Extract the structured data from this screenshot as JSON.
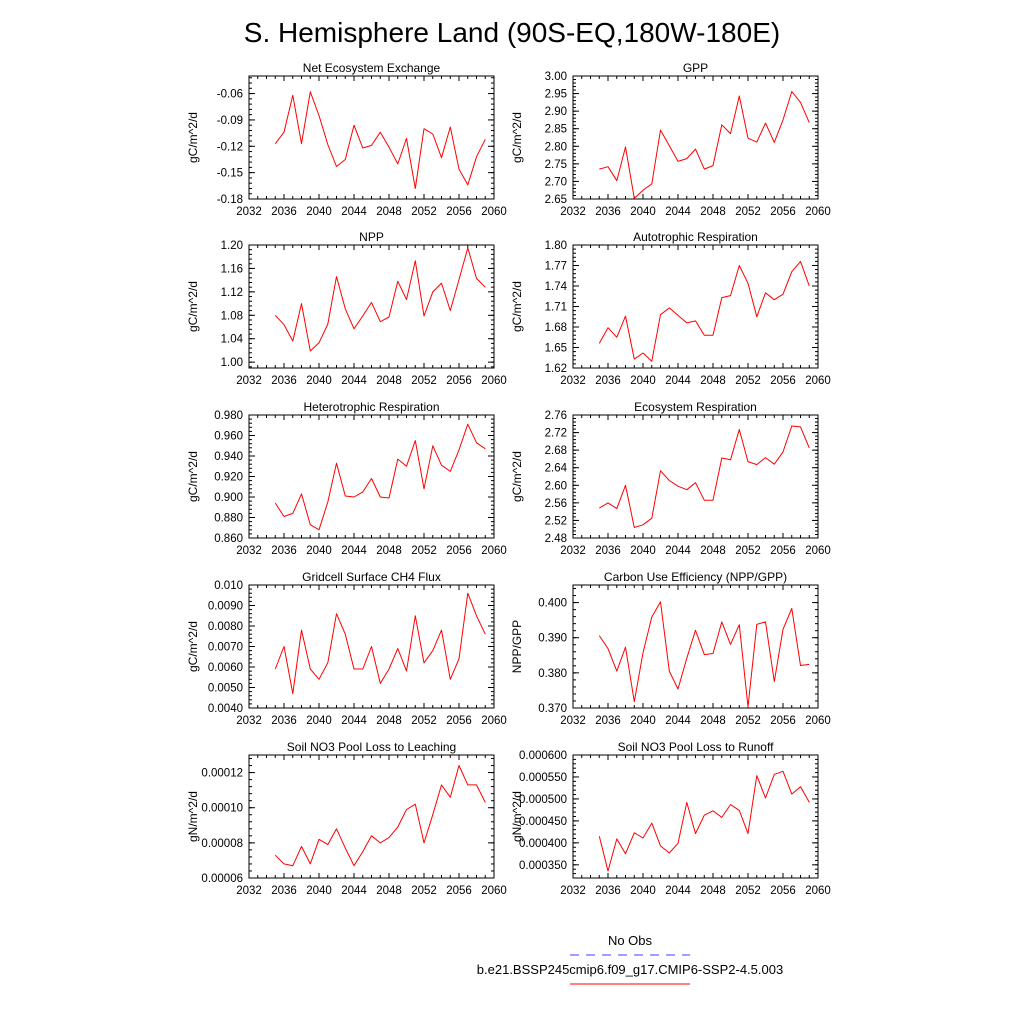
{
  "figure": {
    "title": "S. Hemisphere Land (90S-EQ,180W-180E)",
    "legend": [
      {
        "label": "No Obs",
        "color": "#4040ff",
        "style": "dashed"
      },
      {
        "label": "b.e21.BSSP245cmip6.f09_g17.CMIP6-SSP2-4.5.003",
        "color": "#ff0000",
        "style": "solid"
      }
    ]
  },
  "chart_data": [
    {
      "type": "line",
      "title": "Net Ecosystem Exchange",
      "ylabel": "gC/m^2/d",
      "xlim": [
        2032,
        2060
      ],
      "ylim": [
        -0.18,
        -0.04
      ],
      "xticks": [
        "2032",
        "2036",
        "2040",
        "2044",
        "2048",
        "2052",
        "2056",
        "2060"
      ],
      "yticks": [
        "-0.18",
        "-0.15",
        "-0.12",
        "-0.09",
        "-0.06"
      ],
      "ytick_values": [
        -0.18,
        -0.15,
        -0.12,
        -0.09,
        -0.06
      ],
      "series": [
        {
          "name": "b.e21.BSSP245cmip6.f09_g17.CMIP6-SSP2-4.5.003",
          "color": "#ff0000",
          "x": [
            2035,
            2036,
            2037,
            2038,
            2039,
            2040,
            2041,
            2042,
            2043,
            2044,
            2045,
            2046,
            2047,
            2048,
            2049,
            2050,
            2051,
            2052,
            2053,
            2054,
            2055,
            2056,
            2057,
            2058,
            2059
          ],
          "y": [
            -0.117,
            -0.104,
            -0.062,
            -0.117,
            -0.058,
            -0.085,
            -0.118,
            -0.143,
            -0.135,
            -0.096,
            -0.122,
            -0.119,
            -0.104,
            -0.121,
            -0.14,
            -0.111,
            -0.168,
            -0.1,
            -0.106,
            -0.133,
            -0.098,
            -0.146,
            -0.164,
            -0.132,
            -0.112
          ]
        }
      ]
    },
    {
      "type": "line",
      "title": "GPP",
      "ylabel": "gC/m^2/d",
      "xlim": [
        2032,
        2060
      ],
      "ylim": [
        2.65,
        3.0
      ],
      "xticks": [
        "2032",
        "2036",
        "2040",
        "2044",
        "2048",
        "2052",
        "2056",
        "2060"
      ],
      "yticks": [
        "2.65",
        "2.70",
        "2.75",
        "2.80",
        "2.85",
        "2.90",
        "2.95",
        "3.00"
      ],
      "ytick_values": [
        2.65,
        2.7,
        2.75,
        2.8,
        2.85,
        2.9,
        2.95,
        3.0
      ],
      "series": [
        {
          "name": "b.e21.BSSP245cmip6.f09_g17.CMIP6-SSP2-4.5.003",
          "color": "#ff0000",
          "x": [
            2035,
            2036,
            2037,
            2038,
            2039,
            2040,
            2041,
            2042,
            2043,
            2044,
            2045,
            2046,
            2047,
            2048,
            2049,
            2050,
            2051,
            2052,
            2053,
            2054,
            2055,
            2056,
            2057,
            2058,
            2059
          ],
          "y": [
            2.735,
            2.742,
            2.702,
            2.798,
            2.652,
            2.675,
            2.693,
            2.846,
            2.802,
            2.757,
            2.765,
            2.792,
            2.735,
            2.745,
            2.861,
            2.836,
            2.943,
            2.823,
            2.812,
            2.866,
            2.811,
            2.875,
            2.956,
            2.925,
            2.867
          ]
        }
      ]
    },
    {
      "type": "line",
      "title": "NPP",
      "ylabel": "gC/m^2/d",
      "xlim": [
        2032,
        2060
      ],
      "ylim": [
        0.99,
        1.2
      ],
      "xticks": [
        "2032",
        "2036",
        "2040",
        "2044",
        "2048",
        "2052",
        "2056",
        "2060"
      ],
      "yticks": [
        "1.00",
        "1.04",
        "1.08",
        "1.12",
        "1.16",
        "1.20"
      ],
      "ytick_values": [
        1.0,
        1.04,
        1.08,
        1.12,
        1.16,
        1.2
      ],
      "series": [
        {
          "name": "b.e21.BSSP245cmip6.f09_g17.CMIP6-SSP2-4.5.003",
          "color": "#ff0000",
          "x": [
            2035,
            2036,
            2037,
            2038,
            2039,
            2040,
            2041,
            2042,
            2043,
            2044,
            2045,
            2046,
            2047,
            2048,
            2049,
            2050,
            2051,
            2052,
            2053,
            2054,
            2055,
            2056,
            2057,
            2058,
            2059
          ],
          "y": [
            1.08,
            1.064,
            1.036,
            1.1,
            1.019,
            1.033,
            1.065,
            1.146,
            1.091,
            1.057,
            1.079,
            1.102,
            1.069,
            1.077,
            1.138,
            1.107,
            1.173,
            1.079,
            1.12,
            1.135,
            1.088,
            1.141,
            1.195,
            1.143,
            1.128
          ]
        }
      ]
    },
    {
      "type": "line",
      "title": "Autotrophic Respiration",
      "ylabel": "gC/m^2/d",
      "xlim": [
        2032,
        2060
      ],
      "ylim": [
        1.62,
        1.8
      ],
      "xticks": [
        "2032",
        "2036",
        "2040",
        "2044",
        "2048",
        "2052",
        "2056",
        "2060"
      ],
      "yticks": [
        "1.62",
        "1.65",
        "1.68",
        "1.71",
        "1.74",
        "1.77",
        "1.80"
      ],
      "ytick_values": [
        1.62,
        1.65,
        1.68,
        1.71,
        1.74,
        1.77,
        1.8
      ],
      "series": [
        {
          "name": "b.e21.BSSP245cmip6.f09_g17.CMIP6-SSP2-4.5.003",
          "color": "#ff0000",
          "x": [
            2035,
            2036,
            2037,
            2038,
            2039,
            2040,
            2041,
            2042,
            2043,
            2044,
            2045,
            2046,
            2047,
            2048,
            2049,
            2050,
            2051,
            2052,
            2053,
            2054,
            2055,
            2056,
            2057,
            2058,
            2059
          ],
          "y": [
            1.656,
            1.679,
            1.665,
            1.696,
            1.633,
            1.642,
            1.63,
            1.698,
            1.708,
            1.697,
            1.686,
            1.689,
            1.668,
            1.668,
            1.723,
            1.726,
            1.77,
            1.744,
            1.695,
            1.73,
            1.72,
            1.728,
            1.761,
            1.776,
            1.74
          ]
        }
      ]
    },
    {
      "type": "line",
      "title": "Heterotrophic Respiration",
      "ylabel": "gC/m^2/d",
      "xlim": [
        2032,
        2060
      ],
      "ylim": [
        0.86,
        0.98
      ],
      "xticks": [
        "2032",
        "2036",
        "2040",
        "2044",
        "2048",
        "2052",
        "2056",
        "2060"
      ],
      "yticks": [
        "0.860",
        "0.880",
        "0.900",
        "0.920",
        "0.940",
        "0.960",
        "0.980"
      ],
      "ytick_values": [
        0.86,
        0.88,
        0.9,
        0.92,
        0.94,
        0.96,
        0.98
      ],
      "series": [
        {
          "name": "b.e21.BSSP245cmip6.f09_g17.CMIP6-SSP2-4.5.003",
          "color": "#ff0000",
          "x": [
            2035,
            2036,
            2037,
            2038,
            2039,
            2040,
            2041,
            2042,
            2043,
            2044,
            2045,
            2046,
            2047,
            2048,
            2049,
            2050,
            2051,
            2052,
            2053,
            2054,
            2055,
            2056,
            2057,
            2058,
            2059
          ],
          "y": [
            0.894,
            0.881,
            0.884,
            0.903,
            0.873,
            0.868,
            0.895,
            0.933,
            0.901,
            0.9,
            0.905,
            0.918,
            0.9,
            0.899,
            0.937,
            0.93,
            0.955,
            0.908,
            0.95,
            0.931,
            0.925,
            0.946,
            0.971,
            0.953,
            0.947
          ]
        }
      ]
    },
    {
      "type": "line",
      "title": "Ecosystem Respiration",
      "ylabel": "gC/m^2/d",
      "xlim": [
        2032,
        2060
      ],
      "ylim": [
        2.48,
        2.76
      ],
      "xticks": [
        "2032",
        "2036",
        "2040",
        "2044",
        "2048",
        "2052",
        "2056",
        "2060"
      ],
      "yticks": [
        "2.48",
        "2.52",
        "2.56",
        "2.60",
        "2.64",
        "2.68",
        "2.72",
        "2.76"
      ],
      "ytick_values": [
        2.48,
        2.52,
        2.56,
        2.6,
        2.64,
        2.68,
        2.72,
        2.76
      ],
      "series": [
        {
          "name": "b.e21.BSSP245cmip6.f09_g17.CMIP6-SSP2-4.5.003",
          "color": "#ff0000",
          "x": [
            2035,
            2036,
            2037,
            2038,
            2039,
            2040,
            2041,
            2042,
            2043,
            2044,
            2045,
            2046,
            2047,
            2048,
            2049,
            2050,
            2051,
            2052,
            2053,
            2054,
            2055,
            2056,
            2057,
            2058,
            2059
          ],
          "y": [
            2.548,
            2.56,
            2.547,
            2.6,
            2.504,
            2.51,
            2.525,
            2.633,
            2.611,
            2.598,
            2.59,
            2.606,
            2.566,
            2.566,
            2.662,
            2.658,
            2.727,
            2.654,
            2.647,
            2.663,
            2.648,
            2.676,
            2.735,
            2.733,
            2.685
          ]
        }
      ]
    },
    {
      "type": "line",
      "title": "Gridcell Surface CH4 Flux",
      "ylabel": "gC/m^2/d",
      "xlim": [
        2032,
        2060
      ],
      "ylim": [
        0.004,
        0.01
      ],
      "xticks": [
        "2032",
        "2036",
        "2040",
        "2044",
        "2048",
        "2052",
        "2056",
        "2060"
      ],
      "yticks": [
        "0.0040",
        "0.0050",
        "0.0060",
        "0.0070",
        "0.0080",
        "0.0090",
        "0.010"
      ],
      "ytick_values": [
        0.004,
        0.005,
        0.006,
        0.007,
        0.008,
        0.009,
        0.01
      ],
      "series": [
        {
          "name": "b.e21.BSSP245cmip6.f09_g17.CMIP6-SSP2-4.5.003",
          "color": "#ff0000",
          "x": [
            2035,
            2036,
            2037,
            2038,
            2039,
            2040,
            2041,
            2042,
            2043,
            2044,
            2045,
            2046,
            2047,
            2048,
            2049,
            2050,
            2051,
            2052,
            2053,
            2054,
            2055,
            2056,
            2057,
            2058,
            2059
          ],
          "y": [
            0.0059,
            0.007,
            0.0047,
            0.0078,
            0.0059,
            0.0054,
            0.0062,
            0.0086,
            0.0076,
            0.0059,
            0.0059,
            0.007,
            0.0052,
            0.0059,
            0.0069,
            0.0058,
            0.0085,
            0.0062,
            0.0068,
            0.0078,
            0.0054,
            0.0064,
            0.0096,
            0.0085,
            0.0076
          ]
        }
      ]
    },
    {
      "type": "line",
      "title": "Carbon Use Efficiency (NPP/GPP)",
      "ylabel": "NPP/GPP",
      "xlim": [
        2032,
        2060
      ],
      "ylim": [
        0.37,
        0.405
      ],
      "xticks": [
        "2032",
        "2036",
        "2040",
        "2044",
        "2048",
        "2052",
        "2056",
        "2060"
      ],
      "yticks": [
        "0.370",
        "0.380",
        "0.390",
        "0.400"
      ],
      "ytick_values": [
        0.37,
        0.38,
        0.39,
        0.4
      ],
      "series": [
        {
          "name": "b.e21.BSSP245cmip6.f09_g17.CMIP6-SSP2-4.5.003",
          "color": "#ff0000",
          "x": [
            2035,
            2036,
            2037,
            2038,
            2039,
            2040,
            2041,
            2042,
            2043,
            2044,
            2045,
            2046,
            2047,
            2048,
            2049,
            2050,
            2051,
            2052,
            2053,
            2054,
            2055,
            2056,
            2057,
            2058,
            2059
          ],
          "y": [
            0.3906,
            0.3869,
            0.3805,
            0.3873,
            0.3718,
            0.3857,
            0.3959,
            0.4002,
            0.3805,
            0.3754,
            0.3842,
            0.3921,
            0.3852,
            0.3855,
            0.3945,
            0.3881,
            0.3937,
            0.3703,
            0.3938,
            0.3945,
            0.3775,
            0.3924,
            0.3983,
            0.3821,
            0.3824
          ]
        }
      ]
    },
    {
      "type": "line",
      "title": "Soil NO3 Pool Loss to Leaching",
      "ylabel": "gN/m^2/d",
      "xlim": [
        2032,
        2060
      ],
      "ylim": [
        6e-05,
        0.00013
      ],
      "xticks": [
        "2032",
        "2036",
        "2040",
        "2044",
        "2048",
        "2052",
        "2056",
        "2060"
      ],
      "yticks": [
        "0.00006",
        "0.00008",
        "0.00010",
        "0.00012"
      ],
      "ytick_values": [
        6e-05,
        8e-05,
        0.0001,
        0.00012
      ],
      "series": [
        {
          "name": "b.e21.BSSP245cmip6.f09_g17.CMIP6-SSP2-4.5.003",
          "color": "#ff0000",
          "x": [
            2035,
            2036,
            2037,
            2038,
            2039,
            2040,
            2041,
            2042,
            2043,
            2044,
            2045,
            2046,
            2047,
            2048,
            2049,
            2050,
            2051,
            2052,
            2053,
            2054,
            2055,
            2056,
            2057,
            2058,
            2059
          ],
          "y": [
            7.3e-05,
            6.8e-05,
            6.7e-05,
            7.8e-05,
            6.8e-05,
            8.2e-05,
            7.9e-05,
            8.8e-05,
            7.7e-05,
            6.7e-05,
            7.5e-05,
            8.4e-05,
            8e-05,
            8.3e-05,
            8.9e-05,
            9.9e-05,
            0.000102,
            8e-05,
            9.6e-05,
            0.000113,
            0.000106,
            0.000124,
            0.000113,
            0.000113,
            0.000103
          ]
        }
      ]
    },
    {
      "type": "line",
      "title": "Soil NO3 Pool Loss to Runoff",
      "ylabel": "gN/m^2/d",
      "xlim": [
        2032,
        2060
      ],
      "ylim": [
        0.00032,
        0.0006
      ],
      "xticks": [
        "2032",
        "2036",
        "2040",
        "2044",
        "2048",
        "2052",
        "2056",
        "2060"
      ],
      "yticks": [
        "0.000350",
        "0.000400",
        "0.000450",
        "0.000500",
        "0.000550",
        "0.000600"
      ],
      "ytick_values": [
        0.00035,
        0.0004,
        0.00045,
        0.0005,
        0.00055,
        0.0006
      ],
      "series": [
        {
          "name": "b.e21.BSSP245cmip6.f09_g17.CMIP6-SSP2-4.5.003",
          "color": "#ff0000",
          "x": [
            2035,
            2036,
            2037,
            2038,
            2039,
            2040,
            2041,
            2042,
            2043,
            2044,
            2045,
            2046,
            2047,
            2048,
            2049,
            2050,
            2051,
            2052,
            2053,
            2054,
            2055,
            2056,
            2057,
            2058,
            2059
          ],
          "y": [
            0.000415,
            0.000336,
            0.000409,
            0.000375,
            0.000423,
            0.000411,
            0.000445,
            0.000393,
            0.000377,
            0.000399,
            0.000492,
            0.000421,
            0.000463,
            0.000473,
            0.000458,
            0.000487,
            0.000474,
            0.000421,
            0.000553,
            0.000502,
            0.000556,
            0.000563,
            0.000511,
            0.000528,
            0.000492
          ]
        }
      ]
    }
  ]
}
